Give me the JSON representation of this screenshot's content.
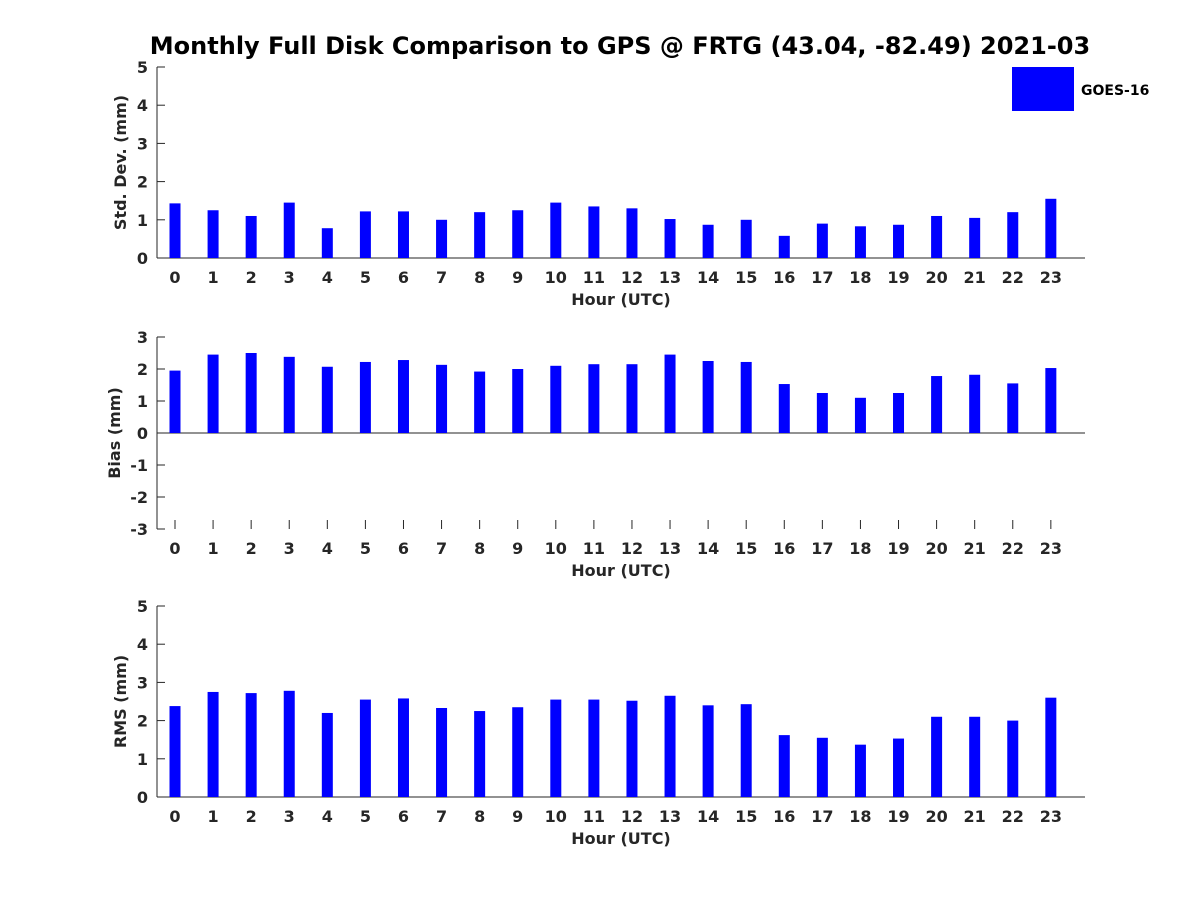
{
  "title": "Monthly Full Disk Comparison to GPS @ FRTG (43.04, -82.49) 2021-03",
  "legend": {
    "label": "GOES-16",
    "placement": "top-right"
  },
  "colors": {
    "bar": "#0000ff",
    "axis": "#262626"
  },
  "chart_data": [
    {
      "type": "bar",
      "title": "",
      "xlabel": "Hour (UTC)",
      "ylabel": "Std. Dev. (mm)",
      "ylim": [
        0,
        5
      ],
      "yticks": [
        0,
        1,
        2,
        3,
        4,
        5
      ],
      "grid": false,
      "categories": [
        0,
        1,
        2,
        3,
        4,
        5,
        6,
        7,
        8,
        9,
        10,
        11,
        12,
        13,
        14,
        15,
        16,
        17,
        18,
        19,
        20,
        21,
        22,
        23
      ],
      "series": [
        {
          "name": "GOES-16",
          "values": [
            1.43,
            1.25,
            1.1,
            1.45,
            0.78,
            1.22,
            1.22,
            1.0,
            1.2,
            1.25,
            1.45,
            1.35,
            1.3,
            1.02,
            0.87,
            1.0,
            0.58,
            0.9,
            0.83,
            0.87,
            1.1,
            1.05,
            1.2,
            1.55
          ]
        }
      ]
    },
    {
      "type": "bar",
      "title": "",
      "xlabel": "Hour (UTC)",
      "ylabel": "Bias (mm)",
      "ylim": [
        -3,
        3
      ],
      "yticks": [
        -3,
        -2,
        -1,
        0,
        1,
        2,
        3
      ],
      "grid": false,
      "categories": [
        0,
        1,
        2,
        3,
        4,
        5,
        6,
        7,
        8,
        9,
        10,
        11,
        12,
        13,
        14,
        15,
        16,
        17,
        18,
        19,
        20,
        21,
        22,
        23
      ],
      "series": [
        {
          "name": "GOES-16",
          "values": [
            1.95,
            2.45,
            2.5,
            2.38,
            2.07,
            2.22,
            2.28,
            2.13,
            1.92,
            2.0,
            2.1,
            2.15,
            2.15,
            2.45,
            2.25,
            2.22,
            1.53,
            1.25,
            1.1,
            1.25,
            1.78,
            1.82,
            1.55,
            2.03
          ]
        }
      ]
    },
    {
      "type": "bar",
      "title": "",
      "xlabel": "Hour (UTC)",
      "ylabel": "RMS (mm)",
      "ylim": [
        0,
        5
      ],
      "yticks": [
        0,
        1,
        2,
        3,
        4,
        5
      ],
      "grid": false,
      "categories": [
        0,
        1,
        2,
        3,
        4,
        5,
        6,
        7,
        8,
        9,
        10,
        11,
        12,
        13,
        14,
        15,
        16,
        17,
        18,
        19,
        20,
        21,
        22,
        23
      ],
      "series": [
        {
          "name": "GOES-16",
          "values": [
            2.38,
            2.75,
            2.72,
            2.78,
            2.2,
            2.55,
            2.58,
            2.33,
            2.25,
            2.35,
            2.55,
            2.55,
            2.52,
            2.65,
            2.4,
            2.43,
            1.62,
            1.55,
            1.37,
            1.53,
            2.1,
            2.1,
            2.0,
            2.6
          ]
        }
      ]
    }
  ]
}
